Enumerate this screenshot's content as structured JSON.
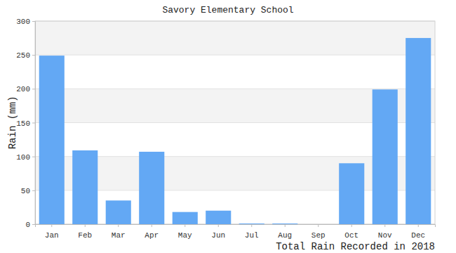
{
  "chart_data": {
    "type": "bar",
    "title": "Savory Elementary School",
    "subtitle": "Total Rain Recorded in 2018",
    "y_label": "Rain (mm)",
    "categories": [
      "Jan",
      "Feb",
      "Mar",
      "Apr",
      "May",
      "Jun",
      "Jul",
      "Aug",
      "Sep",
      "Oct",
      "Nov",
      "Dec"
    ],
    "values": [
      249,
      109,
      35,
      107,
      18,
      20,
      1,
      1,
      0,
      90,
      199,
      275
    ],
    "color": "#63a8f4",
    "ylim": [
      0,
      300
    ],
    "yticks": [
      0,
      50,
      100,
      150,
      200,
      250,
      300
    ],
    "grid": true
  }
}
